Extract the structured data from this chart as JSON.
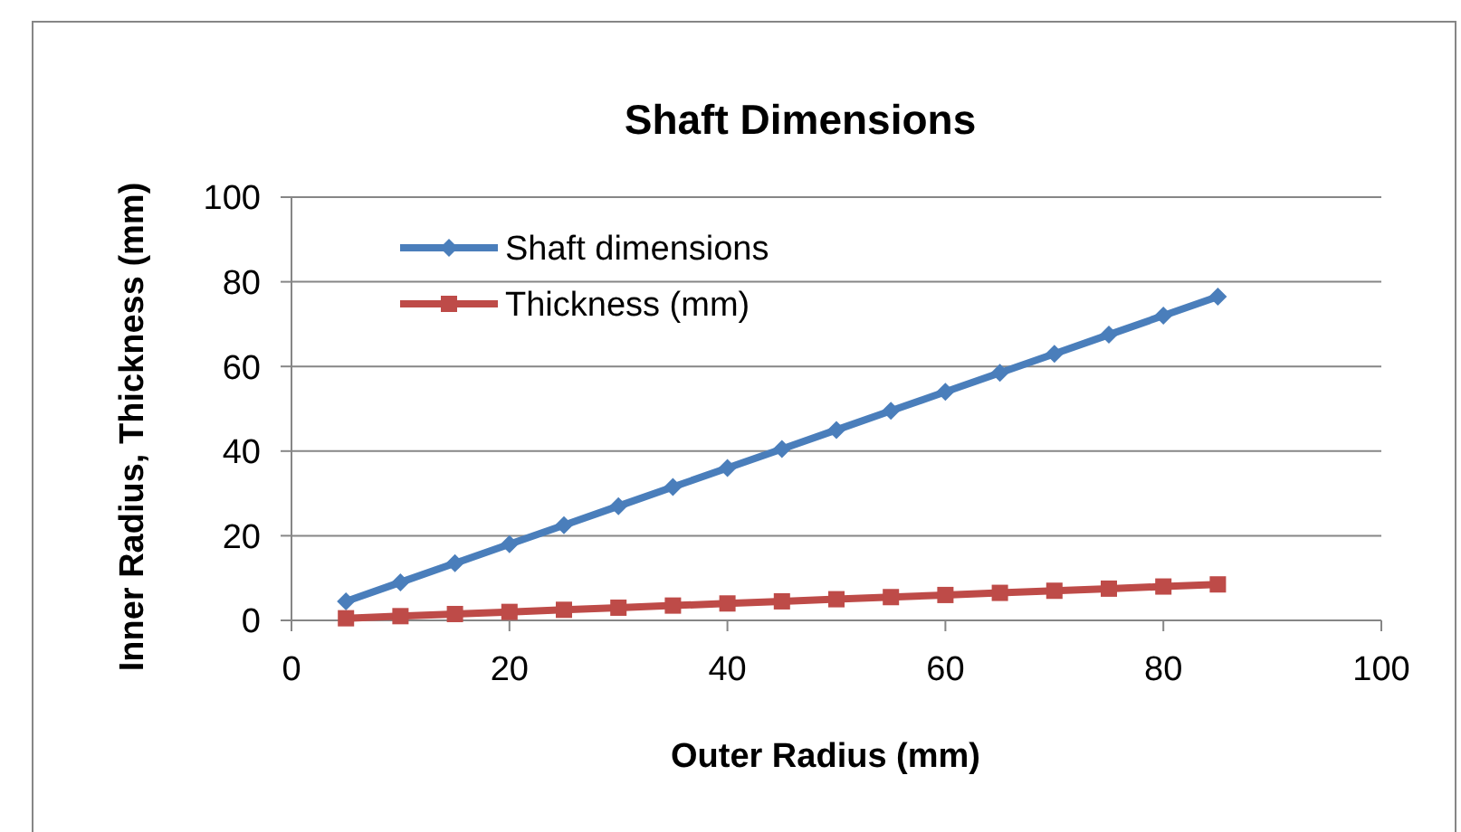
{
  "chart_data": {
    "type": "line",
    "title": "Shaft Dimensions",
    "xlabel": "Outer Radius (mm)",
    "ylabel": "Inner Radius, Thickness (mm)",
    "x": [
      5,
      10,
      15,
      20,
      25,
      30,
      35,
      40,
      45,
      50,
      55,
      60,
      65,
      70,
      75,
      80,
      85
    ],
    "series": [
      {
        "name": "Shaft dimensions",
        "color": "#4a7ebb",
        "marker": "diamond",
        "values": [
          4.5,
          9,
          13.5,
          18,
          22.5,
          27,
          31.5,
          36,
          40.5,
          45,
          49.5,
          54,
          58.5,
          63,
          67.5,
          72,
          76.5
        ]
      },
      {
        "name": "Thickness (mm)",
        "color": "#be4b48",
        "marker": "square",
        "values": [
          0.5,
          1,
          1.5,
          2,
          2.5,
          3,
          3.5,
          4,
          4.5,
          5,
          5.5,
          6,
          6.5,
          7,
          7.5,
          8,
          8.5
        ]
      }
    ],
    "xlim": [
      0,
      100
    ],
    "xticks": [
      0,
      20,
      40,
      60,
      80,
      100
    ],
    "ylim": [
      0,
      100
    ],
    "yticks": [
      0,
      20,
      40,
      60,
      80,
      100
    ],
    "grid": "y",
    "legend": "top left",
    "line_style": "solid"
  }
}
